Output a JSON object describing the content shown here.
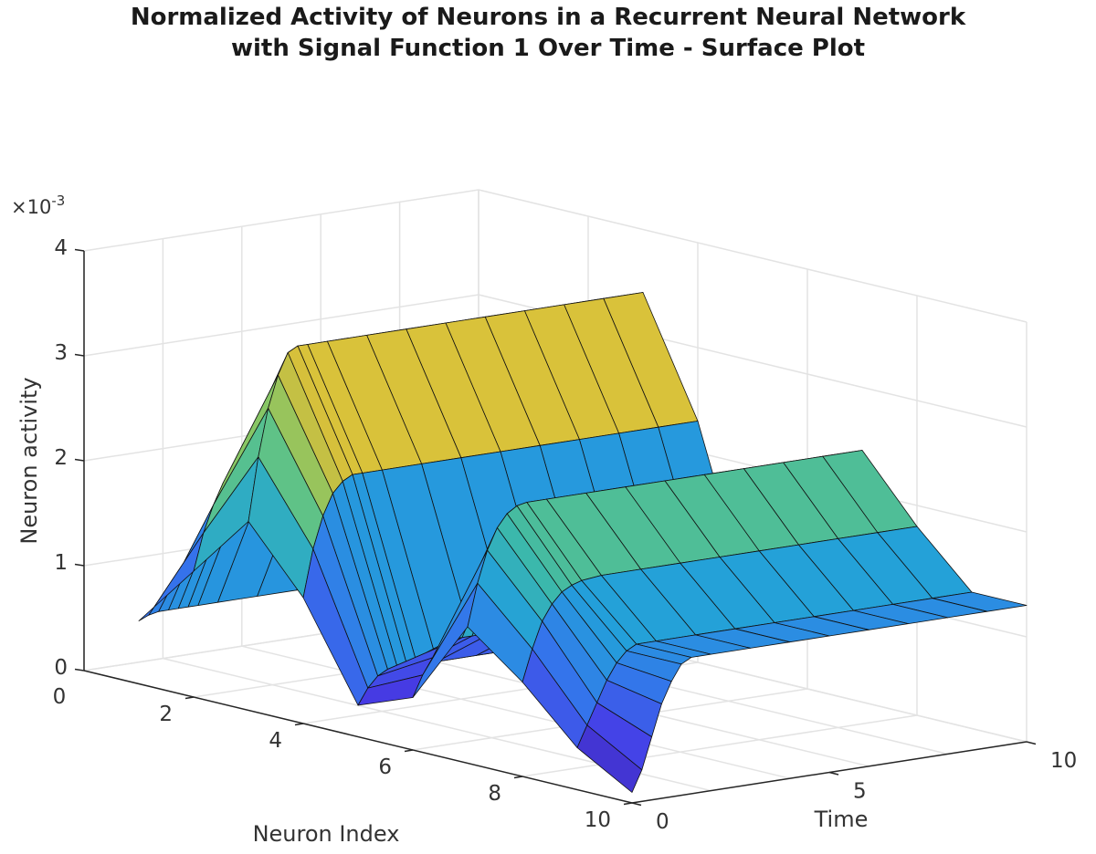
{
  "chart_data": {
    "type": "surface",
    "title_lines": [
      "Normalized Activity of Neurons in a Recurrent Neural Network",
      "with Signal Function 1 Over Time - Surface Plot"
    ],
    "xlabel": "Neuron Index",
    "ylabel": "Time",
    "zlabel": "Neuron activity",
    "z_exponent_label": "×10",
    "z_exponent_power": "-3",
    "xlim": [
      0,
      10
    ],
    "ylim": [
      0,
      10
    ],
    "zlim": [
      0,
      0.004
    ],
    "x_ticks": [
      {
        "value": 2,
        "label": "2"
      },
      {
        "value": 4,
        "label": "4"
      },
      {
        "value": 6,
        "label": "6"
      },
      {
        "value": 8,
        "label": "8"
      },
      {
        "value": 10,
        "label": "10"
      }
    ],
    "y_ticks": [
      {
        "value": 0,
        "label": "0"
      },
      {
        "value": 5,
        "label": "5"
      },
      {
        "value": 10,
        "label": "10"
      }
    ],
    "z_ticks": [
      {
        "value": 0,
        "label": "0"
      },
      {
        "value": 0.001,
        "label": "1"
      },
      {
        "value": 0.002,
        "label": "2"
      },
      {
        "value": 0.003,
        "label": "3"
      },
      {
        "value": 0.004,
        "label": "4"
      }
    ],
    "x_origin_label": "0",
    "grid": true,
    "colormap": "parula",
    "neuron_index": [
      1,
      2,
      3,
      4,
      5,
      6,
      7,
      8,
      9,
      10
    ],
    "time_samples": [
      0,
      0.25,
      0.5,
      0.75,
      1,
      1.25,
      1.5,
      2,
      3,
      4,
      5,
      6,
      7,
      8,
      9,
      10
    ],
    "activity": [
      [
        0.0006,
        0.00064,
        0.00066,
        0.00066,
        0.00066,
        0.00066,
        0.00066,
        0.00066,
        0.00066,
        0.00066,
        0.00066,
        0.00066,
        0.00066,
        0.00066,
        0.00066,
        0.00066
      ],
      [
        0.0012,
        0.00155,
        0.0018,
        0.002,
        0.0021,
        0.00215,
        0.00215,
        0.00215,
        0.00215,
        0.00215,
        0.00215,
        0.00215,
        0.00215,
        0.00215,
        0.00215,
        0.00215
      ],
      [
        0.0018,
        0.0024,
        0.00285,
        0.00315,
        0.00335,
        0.0034,
        0.0034,
        0.0034,
        0.0034,
        0.0034,
        0.0034,
        0.0034,
        0.0034,
        0.0034,
        0.0034,
        0.0034
      ],
      [
        0.0012,
        0.00165,
        0.00195,
        0.00215,
        0.00225,
        0.0023,
        0.0023,
        0.0023,
        0.0023,
        0.0023,
        0.0023,
        0.0023,
        0.0023,
        0.0023,
        0.0023,
        0.0023
      ],
      [
        0.0003,
        0.00045,
        0.00055,
        0.0006,
        0.0006,
        0.0006,
        0.0006,
        0.0006,
        0.0006,
        0.0006,
        0.0006,
        0.0006,
        0.0006,
        0.0006,
        0.0006,
        0.0006
      ],
      [
        0.0005,
        0.0007,
        0.00085,
        0.00095,
        0.001,
        0.001,
        0.001,
        0.001,
        0.001,
        0.001,
        0.001,
        0.001,
        0.001,
        0.001,
        0.001,
        0.001
      ],
      [
        0.0013,
        0.0017,
        0.002,
        0.0022,
        0.00232,
        0.00238,
        0.0024,
        0.0024,
        0.0024,
        0.0024,
        0.0024,
        0.0024,
        0.0024,
        0.0024,
        0.0024,
        0.0024
      ],
      [
        0.0009,
        0.0012,
        0.00145,
        0.0016,
        0.0017,
        0.00175,
        0.00178,
        0.0018,
        0.0018,
        0.0018,
        0.0018,
        0.0018,
        0.0018,
        0.0018,
        0.0018,
        0.0018
      ],
      [
        0.0004,
        0.0006,
        0.0008,
        0.001,
        0.00115,
        0.00125,
        0.0013,
        0.0013,
        0.0013,
        0.0013,
        0.0013,
        0.0013,
        0.0013,
        0.0013,
        0.0013,
        0.0013
      ],
      [
        0.0001,
        0.0003,
        0.0006,
        0.0009,
        0.0011,
        0.00125,
        0.0013,
        0.0013,
        0.0013,
        0.0013,
        0.0013,
        0.0013,
        0.0013,
        0.0013,
        0.0013,
        0.0013
      ]
    ]
  }
}
